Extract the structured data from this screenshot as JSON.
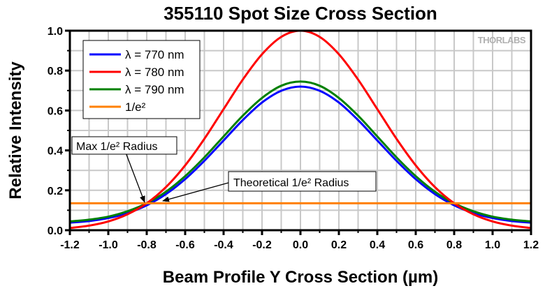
{
  "chart_data": {
    "type": "line",
    "title": "355110 Spot Size Cross Section",
    "xlabel": "Beam Profile Y Cross Section (µm)",
    "ylabel": "Relative Intensity",
    "xlim": [
      -1.2,
      1.2
    ],
    "ylim": [
      0,
      1.0
    ],
    "xticks": [
      "-1.2",
      "-1.0",
      "-0.8",
      "-0.6",
      "-0.4",
      "-0.2",
      "0.0",
      "0.2",
      "0.4",
      "0.6",
      "0.8",
      "1.0",
      "1.2"
    ],
    "yticks": [
      "0.0",
      "0.2",
      "0.4",
      "0.6",
      "0.8",
      "1.0"
    ],
    "grid": true,
    "legend_position": "top-left",
    "watermark": "THORLABS",
    "x": [
      0,
      0.1,
      0.2,
      0.3,
      0.4,
      0.5,
      0.6,
      0.7,
      0.8,
      0.9,
      1.0,
      1.1,
      1.2
    ],
    "series": [
      {
        "name": "λ = 770 nm",
        "color": "#0000ff",
        "symmetric": true,
        "values": [
          0.72,
          0.699,
          0.64,
          0.552,
          0.45,
          0.348,
          0.256,
          0.181,
          0.125,
          0.086,
          0.061,
          0.046,
          0.038
        ]
      },
      {
        "name": "λ = 780 nm",
        "color": "#ff0000",
        "symmetric": true,
        "values": [
          1.0,
          0.969,
          0.882,
          0.755,
          0.607,
          0.458,
          0.325,
          0.216,
          0.135,
          0.08,
          0.044,
          0.023,
          0.011
        ]
      },
      {
        "name": "λ = 790 nm",
        "color": "#008000",
        "symmetric": true,
        "values": [
          0.745,
          0.724,
          0.663,
          0.574,
          0.47,
          0.365,
          0.271,
          0.193,
          0.135,
          0.095,
          0.068,
          0.053,
          0.044
        ]
      },
      {
        "name": "1/e²",
        "color": "#ff8000",
        "constant": 0.135
      }
    ],
    "annotations": [
      {
        "text": "Max 1/e² Radius",
        "target": [
          -0.82,
          0.135
        ]
      },
      {
        "text": "Theoretical 1/e² Radius",
        "target": [
          -0.72,
          0.15
        ]
      }
    ]
  }
}
